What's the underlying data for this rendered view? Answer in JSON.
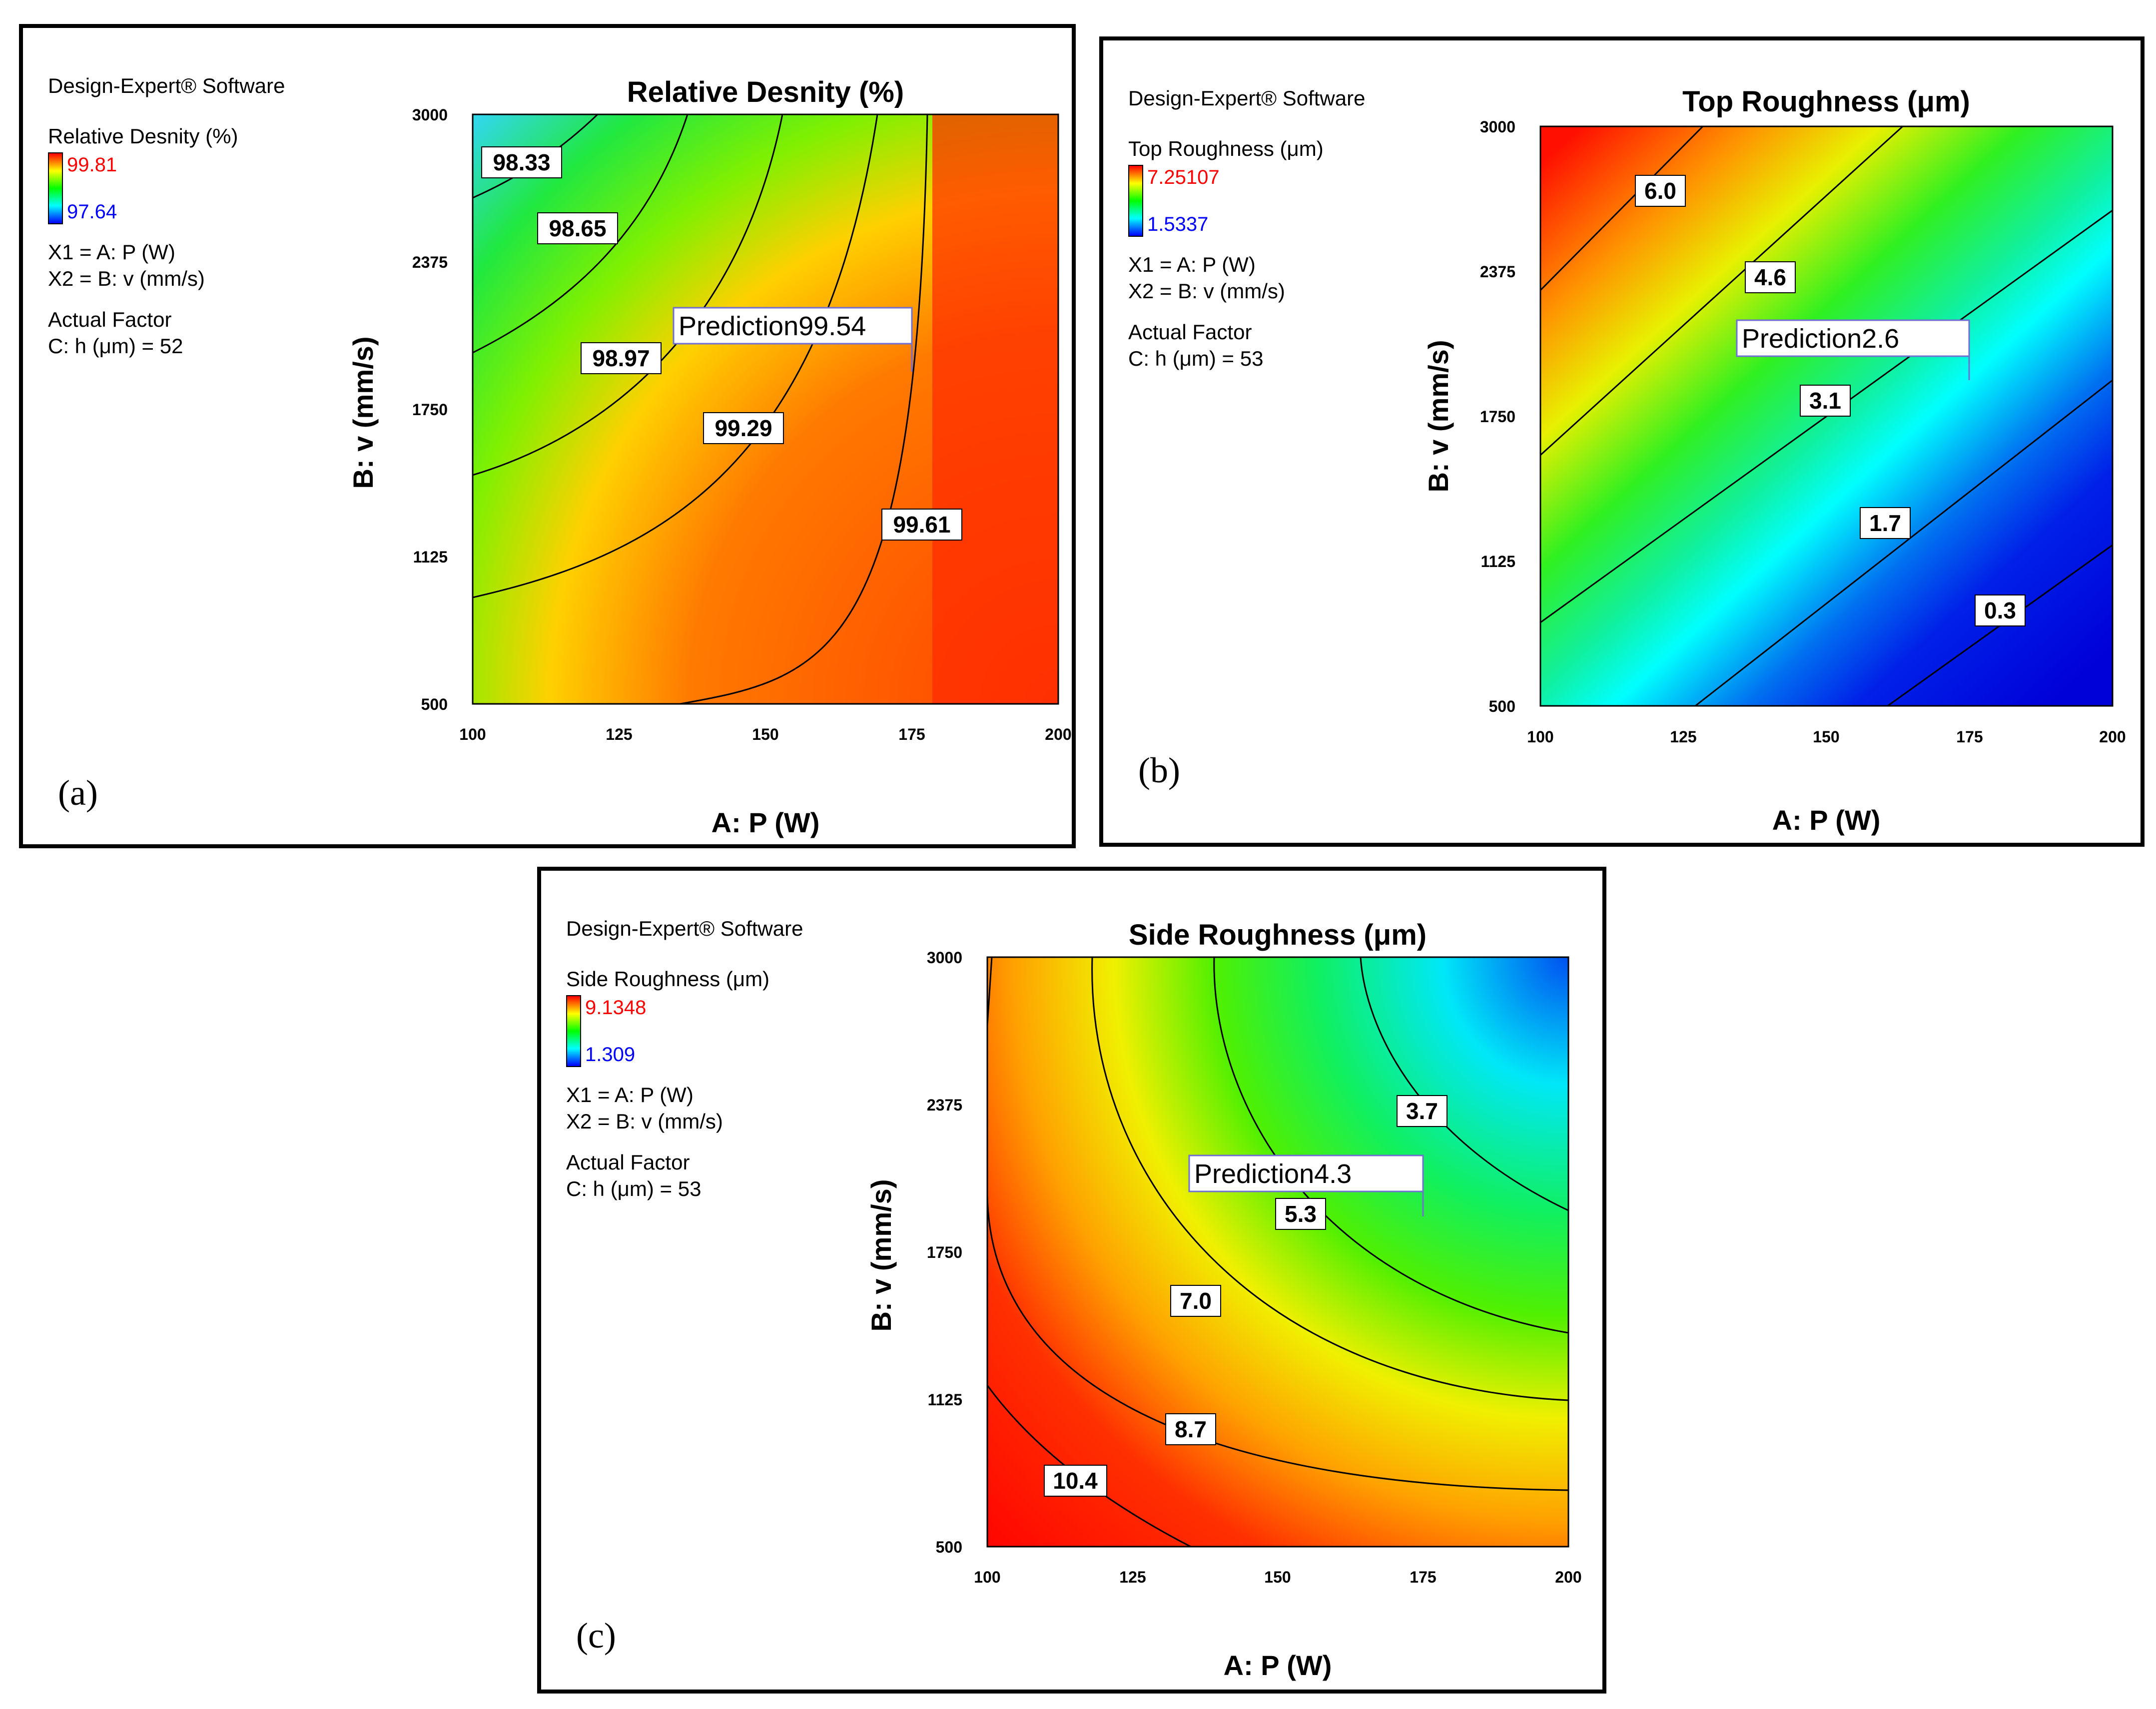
{
  "software": "Design-Expert® Software",
  "panels": [
    {
      "letter": "(a)",
      "title": "Relative Desnity (%)",
      "legend_label": "Relative Desnity (%)",
      "legend_high": "99.81",
      "legend_low": "97.64",
      "x1": "X1 = A: P (W)",
      "x2": "X2 = B: v (mm/s)",
      "actual_factor": "Actual Factor",
      "actual_value": "C: h (μm) = 52",
      "xlabel": "A: P (W)",
      "ylabel": "B: v (mm/s)",
      "xticks": [
        "100",
        "125",
        "150",
        "175",
        "200"
      ],
      "yticks": [
        "500",
        "1125",
        "1750",
        "2375",
        "3000"
      ],
      "prediction_label": "Prediction",
      "prediction_value": "99.54",
      "contour_labels": [
        "98.33",
        "98.65",
        "98.97",
        "99.29",
        "99.61"
      ]
    },
    {
      "letter": "(b)",
      "title": "Top Roughness (μm)",
      "legend_label": "Top Roughness (μm)",
      "legend_high": "7.25107",
      "legend_low": "1.5337",
      "x1": "X1 = A: P (W)",
      "x2": "X2 = B: v (mm/s)",
      "actual_factor": "Actual Factor",
      "actual_value": "C: h (μm) = 53",
      "xlabel": "A: P (W)",
      "ylabel": "B: v (mm/s)",
      "xticks": [
        "100",
        "125",
        "150",
        "175",
        "200"
      ],
      "yticks": [
        "500",
        "1125",
        "1750",
        "2375",
        "3000"
      ],
      "prediction_label": "Prediction",
      "prediction_value": "2.6",
      "contour_labels": [
        "6.0",
        "4.6",
        "3.1",
        "1.7",
        "0.3"
      ]
    },
    {
      "letter": "(c)",
      "title": "Side Roughness (μm)",
      "legend_label": "Side Roughness (μm)",
      "legend_high": "9.1348",
      "legend_low": "1.309",
      "x1": "X1 = A: P (W)",
      "x2": "X2 = B: v (mm/s)",
      "actual_factor": "Actual Factor",
      "actual_value": "C: h (μm) = 53",
      "xlabel": "A: P (W)",
      "ylabel": "B: v (mm/s)",
      "xticks": [
        "100",
        "125",
        "150",
        "175",
        "200"
      ],
      "yticks": [
        "500",
        "1125",
        "1750",
        "2375",
        "3000"
      ],
      "prediction_label": "Prediction",
      "prediction_value": "4.3",
      "contour_labels": [
        "3.7",
        "5.3",
        "7.0",
        "8.7",
        "10.4"
      ]
    }
  ],
  "chart_data": [
    {
      "type": "heatmap",
      "title": "Relative Desnity (%)",
      "xlabel": "A: P (W)",
      "ylabel": "B: v (mm/s)",
      "xlim": [
        100,
        200
      ],
      "ylim": [
        500,
        3000
      ],
      "zlim": [
        97.64,
        99.81
      ],
      "contour_levels": [
        98.33,
        98.65,
        98.97,
        99.29,
        99.61
      ],
      "prediction": {
        "x": 175,
        "y": 1875,
        "value": 99.54
      },
      "actual_factor": "C: h (μm) = 52"
    },
    {
      "type": "heatmap",
      "title": "Top Roughness (μm)",
      "xlabel": "A: P (W)",
      "ylabel": "B: v (mm/s)",
      "xlim": [
        100,
        200
      ],
      "ylim": [
        500,
        3000
      ],
      "zlim": [
        1.5337,
        7.25107
      ],
      "contour_levels": [
        6.0,
        4.6,
        3.1,
        1.7,
        0.3
      ],
      "prediction": {
        "x": 175,
        "y": 1875,
        "value": 2.6
      },
      "actual_factor": "C: h (μm) = 53"
    },
    {
      "type": "heatmap",
      "title": "Side Roughness (μm)",
      "xlabel": "A: P (W)",
      "ylabel": "B: v (mm/s)",
      "xlim": [
        100,
        200
      ],
      "ylim": [
        500,
        3000
      ],
      "zlim": [
        1.309,
        9.1348
      ],
      "contour_levels": [
        3.7,
        5.3,
        7.0,
        8.7,
        10.4
      ],
      "prediction": {
        "x": 175,
        "y": 1875,
        "value": 4.3
      },
      "actual_factor": "C: h (μm) = 53"
    }
  ]
}
